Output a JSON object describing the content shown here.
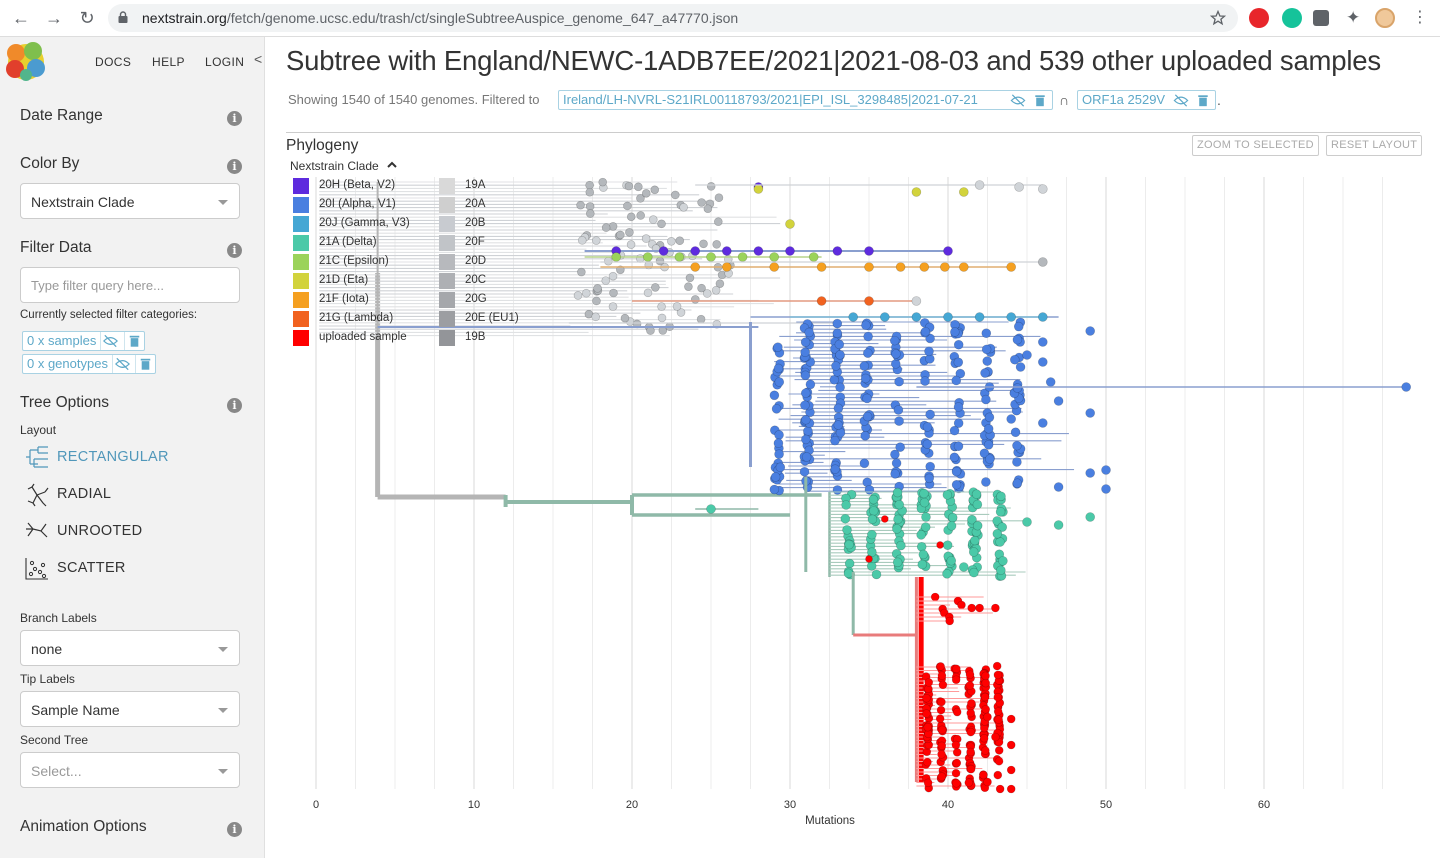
{
  "browser": {
    "url_host": "nextstrain.org",
    "url_path": "/fetch/genome.ucsc.edu/trash/ct/singleSubtreeAuspice_genome_647_a47770.json"
  },
  "nav": {
    "docs": "DOCS",
    "help": "HELP",
    "login": "LOGIN"
  },
  "sidebar": {
    "date_range": "Date Range",
    "color_by": {
      "title": "Color By",
      "value": "Nextstrain Clade"
    },
    "filter": {
      "title": "Filter Data",
      "placeholder": "Type filter query here...",
      "current_label": "Currently selected filter categories:",
      "chips": [
        "0 x samples",
        "0 x genotypes"
      ]
    },
    "tree_options": {
      "title": "Tree Options",
      "layout_label": "Layout",
      "layouts": [
        "RECTANGULAR",
        "RADIAL",
        "UNROOTED",
        "SCATTER"
      ],
      "branch_labels": {
        "label": "Branch Labels",
        "value": "none"
      },
      "tip_labels": {
        "label": "Tip Labels",
        "value": "Sample Name"
      },
      "second_tree": {
        "label": "Second Tree",
        "placeholder": "Select..."
      }
    },
    "animation_options": "Animation Options"
  },
  "main": {
    "title": "Subtree with England/NEWC-1ADB7EE/2021|2021-08-03 and 539 other uploaded samples",
    "showing": "Showing 1540 of 1540 genomes. Filtered to",
    "filters": [
      "Ireland/LH-NVRL-S21IRL00118793/2021|EPI_ISL_3298485|2021-07-21",
      "ORF1a 2529V"
    ],
    "intersect": "∩",
    "period": ".",
    "panel_title": "Phylogeny",
    "buttons": {
      "zoom": "ZOOM TO SELECTED",
      "reset": "RESET LAYOUT"
    },
    "legend_title": "Nextstrain Clade"
  },
  "colors": {
    "accent": "#5097ba",
    "alpha": "#4a7fe0",
    "delta": "#4bc9a8",
    "uploaded": "#ff0000",
    "gray_branch": "#b5b5b5",
    "delta_branch": "#8fb9a8",
    "alpha_branch": "#8a9fcf"
  },
  "chart_data": {
    "type": "scatter",
    "xlabel": "Mutations",
    "xticks": [
      0,
      10,
      20,
      30,
      40,
      50,
      60
    ],
    "xlim": [
      0,
      69
    ],
    "legend": [
      {
        "label": "20H (Beta, V2)",
        "color": "#5e2bde"
      },
      {
        "label": "20I (Alpha, V1)",
        "color": "#4a7fe0"
      },
      {
        "label": "20J (Gamma, V3)",
        "color": "#45a7d4"
      },
      {
        "label": "21A (Delta)",
        "color": "#4bc9a8"
      },
      {
        "label": "21C (Epsilon)",
        "color": "#9bd35a"
      },
      {
        "label": "21D (Eta)",
        "color": "#d2d33c"
      },
      {
        "label": "21F (Iota)",
        "color": "#f5a020"
      },
      {
        "label": "21G (Lambda)",
        "color": "#f1621f"
      },
      {
        "label": "uploaded sample",
        "color": "#ff0000"
      },
      {
        "label": "19A",
        "color": "#d9d9d9"
      },
      {
        "label": "20A",
        "color": "#cfcfcf"
      },
      {
        "label": "20B",
        "color": "#c8cbd0"
      },
      {
        "label": "20F",
        "color": "#c1c4c8"
      },
      {
        "label": "20D",
        "color": "#b7b9bd"
      },
      {
        "label": "20C",
        "color": "#aeb0b4"
      },
      {
        "label": "20G",
        "color": "#a5a7ab"
      },
      {
        "label": "20E (EU1)",
        "color": "#9c9ea2"
      },
      {
        "label": "19B",
        "color": "#939599"
      }
    ]
  }
}
